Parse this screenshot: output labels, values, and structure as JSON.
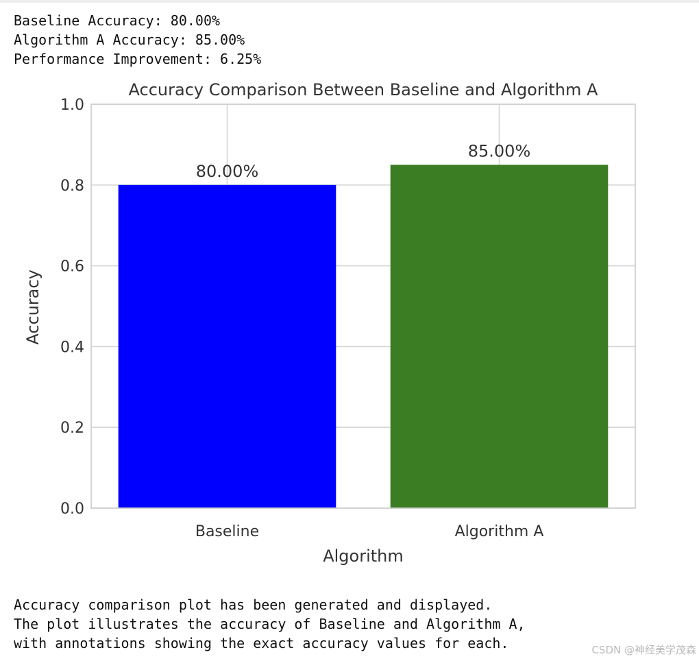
{
  "output": {
    "top_lines": [
      "Baseline Accuracy: 80.00%",
      "Algorithm A Accuracy: 85.00%",
      "Performance Improvement: 6.25%"
    ],
    "bottom_lines": [
      "Accuracy comparison plot has been generated and displayed.",
      "The plot illustrates the accuracy of Baseline and Algorithm A,",
      "with annotations showing the exact accuracy values for each."
    ]
  },
  "watermark": "CSDN @神经美学茂森",
  "chart_data": {
    "type": "bar",
    "title": "Accuracy Comparison Between Baseline and Algorithm A",
    "xlabel": "Algorithm",
    "ylabel": "Accuracy",
    "categories": [
      "Baseline",
      "Algorithm A"
    ],
    "values": [
      0.8,
      0.85
    ],
    "value_labels": [
      "80.00%",
      "85.00%"
    ],
    "colors": [
      "#0000ff",
      "#3a7d22"
    ],
    "ylim": [
      0,
      1.0
    ],
    "yticks": [
      0.0,
      0.2,
      0.4,
      0.6,
      0.8,
      1.0
    ],
    "ytick_labels": [
      "0.0",
      "0.2",
      "0.4",
      "0.6",
      "0.8",
      "1.0"
    ],
    "grid": true,
    "legend": "none",
    "style_colors": {
      "grid": "#d6d6d6",
      "spine": "#cccccc",
      "text": "#333333"
    }
  }
}
